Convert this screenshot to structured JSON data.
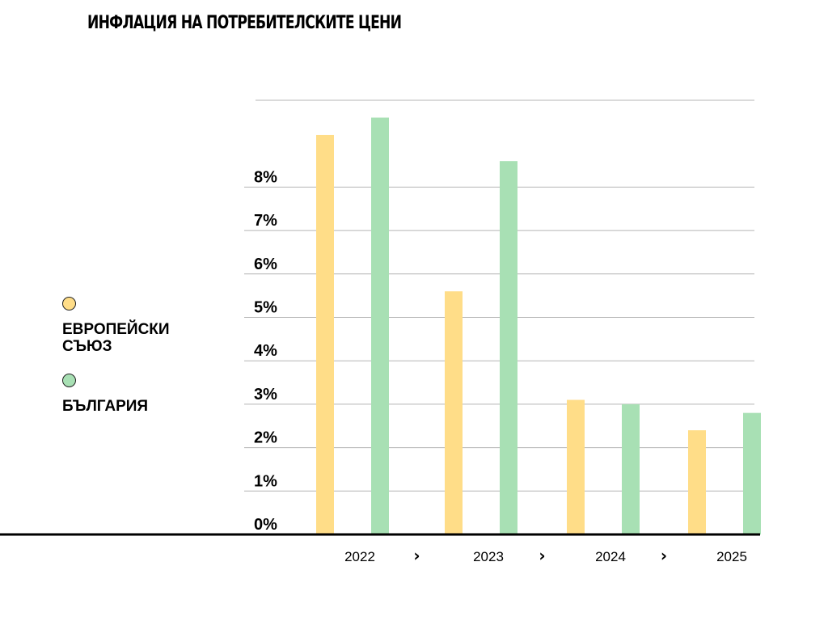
{
  "title": "ИНФЛАЦИЯ НА ПОТРЕБИТЕЛСКИТЕ ЦЕНИ",
  "legend": [
    {
      "label": "ЕВРОПЕЙСКИ СЪЮЗ",
      "color": "#FFDD88"
    },
    {
      "label": "БЪЛГАРИЯ",
      "color": "#A8E0B4"
    }
  ],
  "chart_data": {
    "type": "bar",
    "title": "ИНФЛАЦИЯ НА ПОТРЕБИТЕЛСКИТЕ ЦЕНИ",
    "xlabel": "",
    "ylabel": "",
    "categories": [
      "2022",
      "2023",
      "2024",
      "2025"
    ],
    "series": [
      {
        "name": "ЕВРОПЕЙСКИ СЪЮЗ",
        "color": "#FFDD88",
        "values": [
          9.2,
          5.6,
          3.1,
          2.4
        ]
      },
      {
        "name": "БЪЛГАРИЯ",
        "color": "#A8E0B4",
        "values": [
          9.6,
          8.6,
          3.0,
          2.8
        ]
      }
    ],
    "yticks": [
      "0%",
      "1%",
      "2%",
      "3%",
      "4%",
      "5%",
      "6%",
      "7%",
      "8%"
    ],
    "separator": "›",
    "ylim": [
      0,
      10
    ],
    "grid": true,
    "legend_position": "left"
  }
}
